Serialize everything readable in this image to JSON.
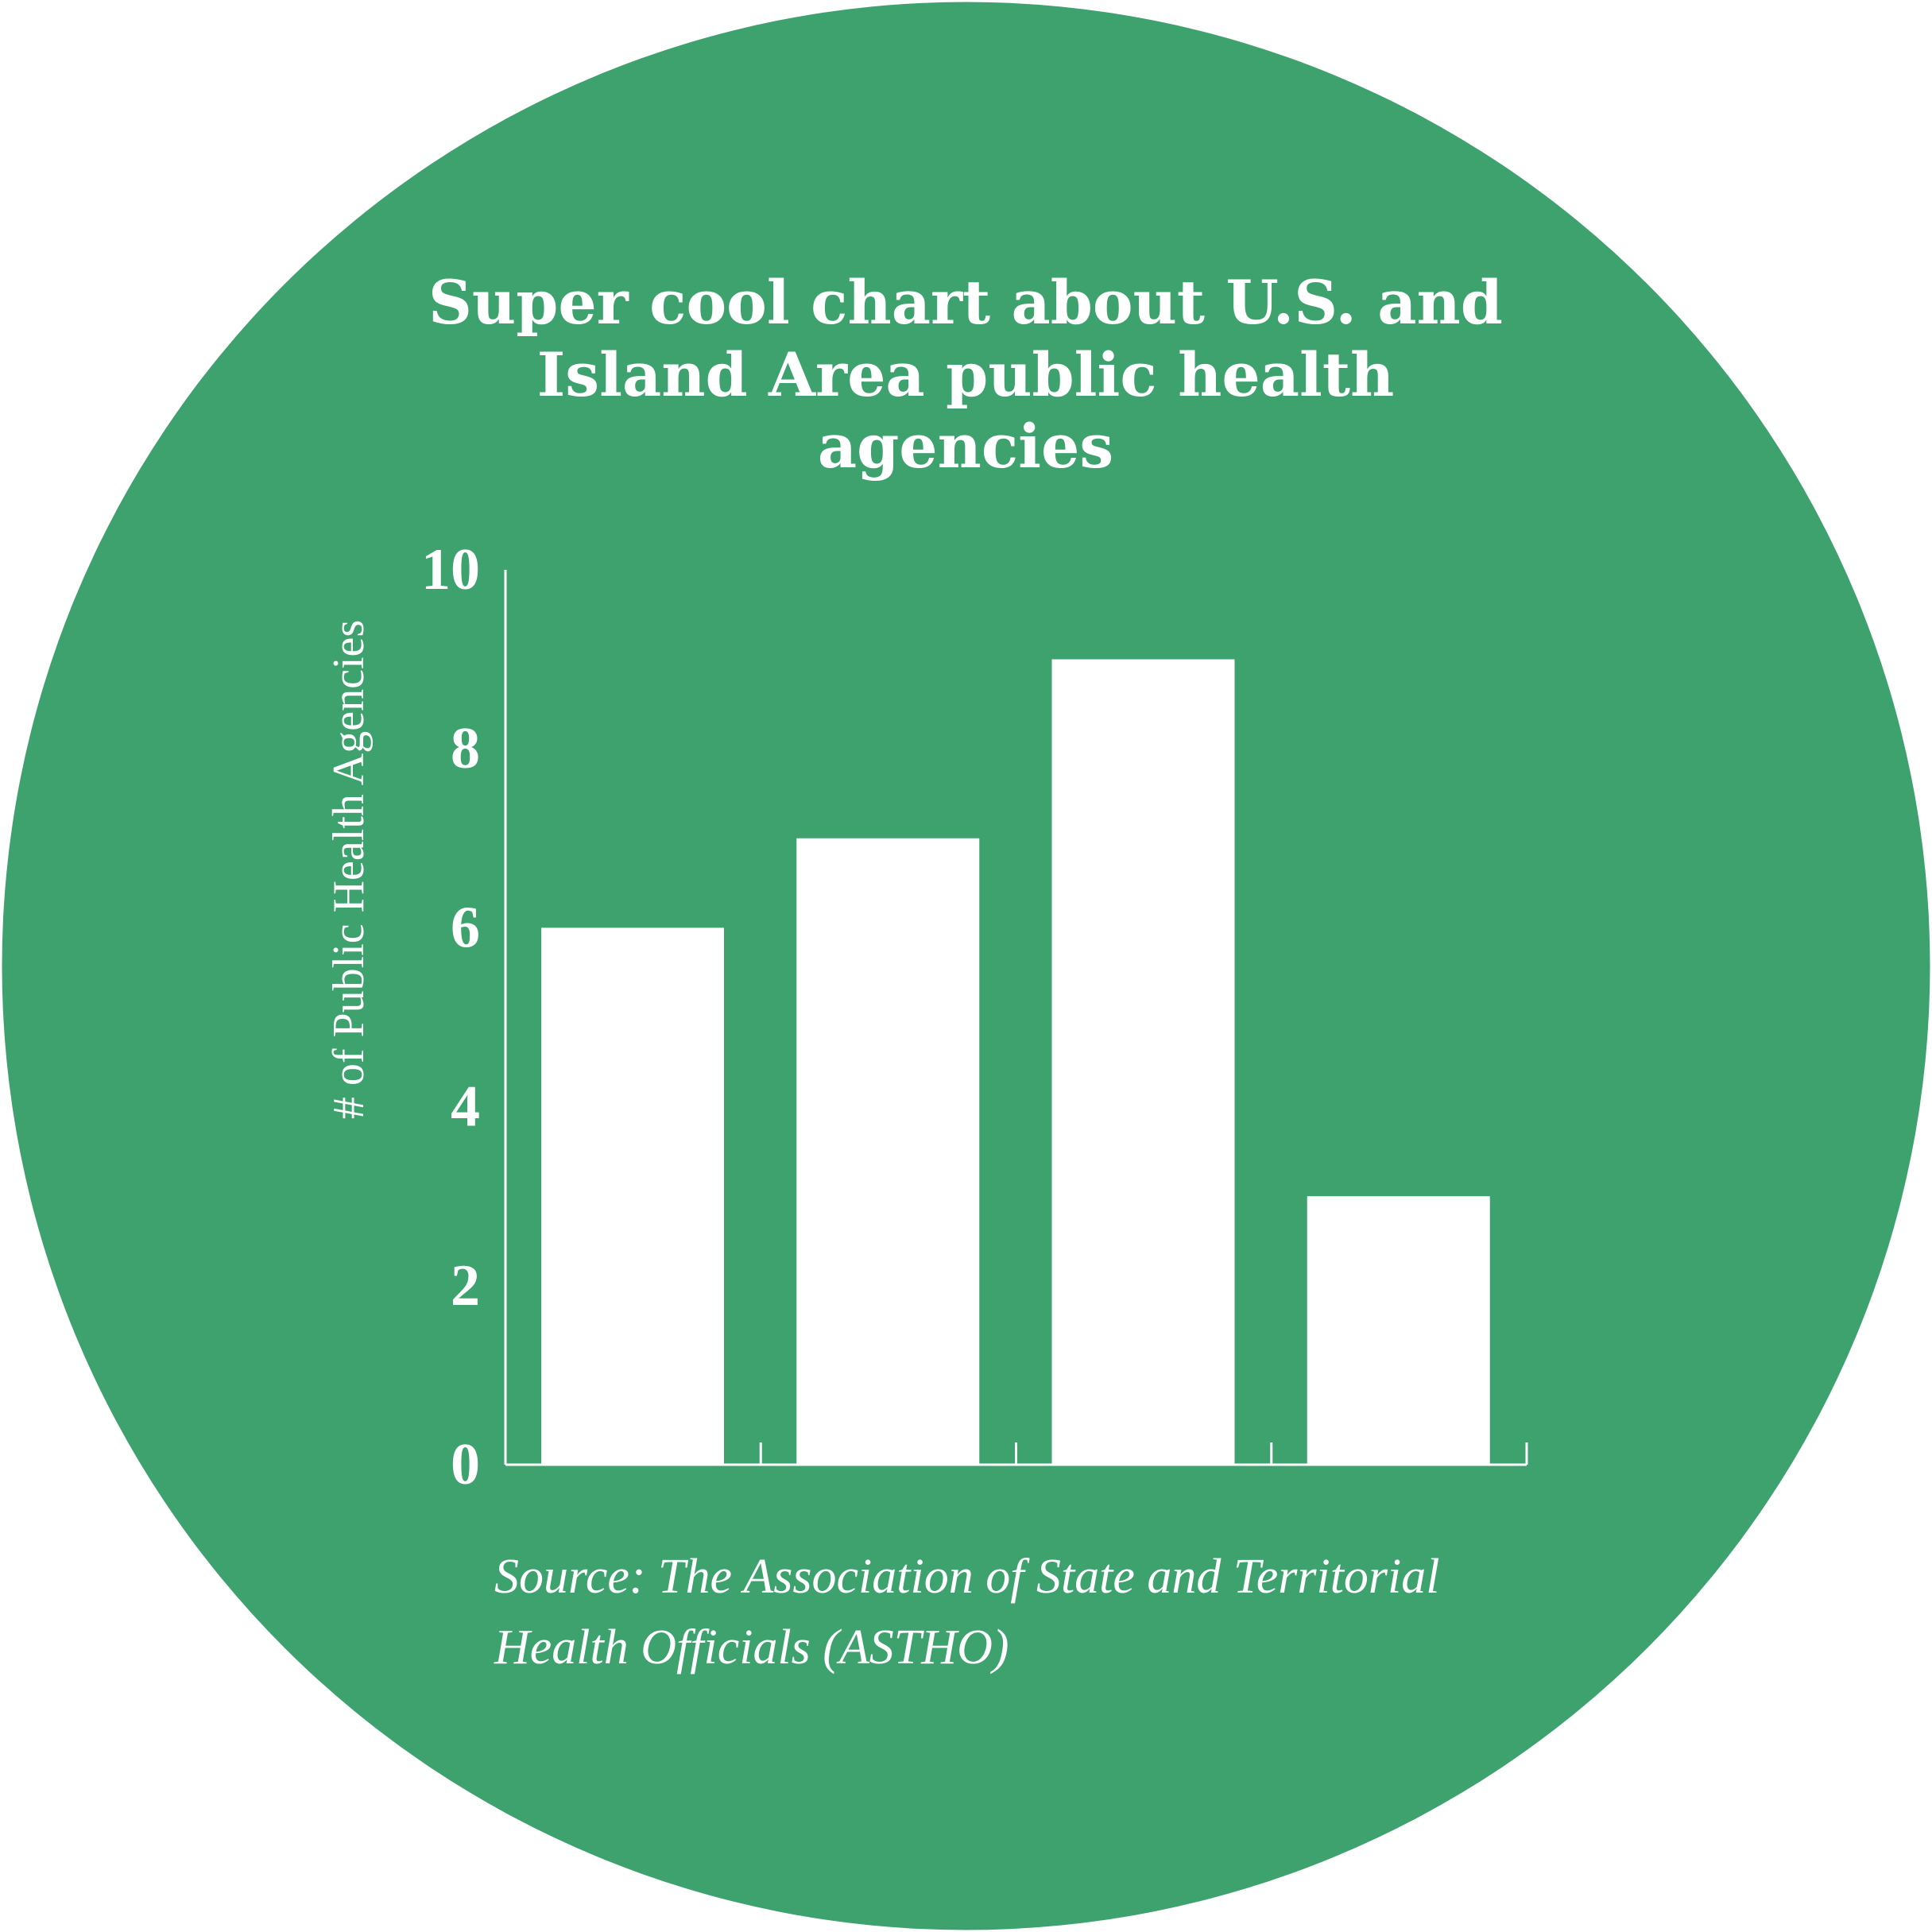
{
  "colors": {
    "background": "#ffffff",
    "circle": "#3ea26e",
    "bars": "#ffffff",
    "axis": "#ffffff",
    "text": "#ffffff"
  },
  "chart_data": {
    "type": "bar",
    "title_lines": [
      "Super cool chart about U.S. and",
      "Island Area public health",
      "agencies"
    ],
    "ylabel": "# of Public Health Agencies",
    "xlabel": "",
    "categories": [
      "",
      "",
      "",
      ""
    ],
    "values": [
      6,
      7,
      9,
      3
    ],
    "ylim": [
      0,
      10
    ],
    "yticks": [
      0,
      2,
      4,
      6,
      8,
      10
    ],
    "ytick_labels": [
      "0",
      "2",
      "4",
      "6",
      "8",
      "10"
    ],
    "grid": false,
    "legend": "none",
    "source_lines": [
      "Source: The Association of State and Territorial",
      "Health Officials (ASTHO)"
    ]
  }
}
